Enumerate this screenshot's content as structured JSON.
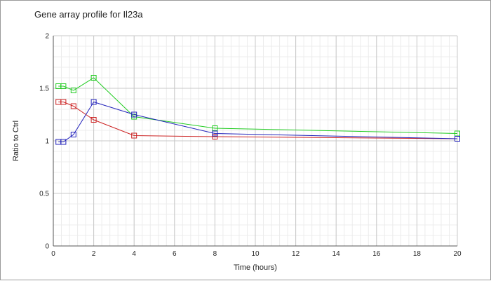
{
  "chart_data": {
    "type": "line",
    "title": "Gene array profile for Il23a",
    "xlabel": "Time (hours)",
    "ylabel": "Ratio to Ctrl",
    "xlim": [
      0,
      20
    ],
    "ylim": [
      0,
      2
    ],
    "xticks": [
      0,
      2,
      4,
      6,
      8,
      10,
      12,
      14,
      16,
      18,
      20
    ],
    "yticks": [
      0,
      0.5,
      1,
      1.5,
      2
    ],
    "xtick_labels": [
      "0",
      "2",
      "4",
      "6",
      "8",
      "10",
      "12",
      "14",
      "16",
      "18",
      "20"
    ],
    "ytick_labels": [
      "0",
      "0.5",
      "1",
      "1.5",
      "2"
    ],
    "grid": true,
    "series": [
      {
        "color": "#22cc22",
        "x": [
          0.25,
          0.5,
          1,
          2,
          4,
          8,
          20
        ],
        "y": [
          1.52,
          1.52,
          1.48,
          1.6,
          1.23,
          1.12,
          1.07
        ]
      },
      {
        "color": "#cc2222",
        "x": [
          0.25,
          0.5,
          1,
          2,
          4,
          8,
          20
        ],
        "y": [
          1.37,
          1.37,
          1.33,
          1.2,
          1.05,
          1.04,
          1.02
        ]
      },
      {
        "color": "#2222bb",
        "x": [
          0.25,
          0.5,
          1,
          2,
          4,
          8,
          20
        ],
        "y": [
          0.99,
          0.99,
          1.06,
          1.37,
          1.25,
          1.07,
          1.02
        ]
      }
    ]
  }
}
